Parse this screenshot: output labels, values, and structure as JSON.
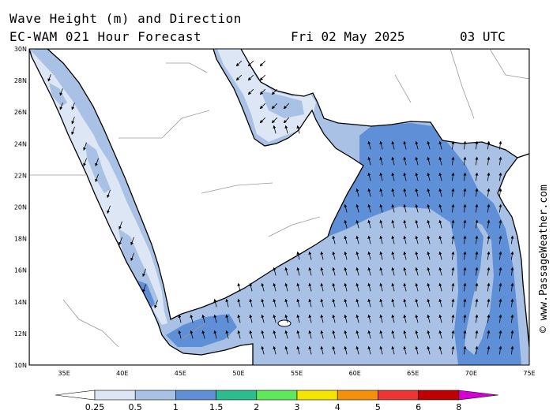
{
  "header": {
    "title_line1": "Wave Height (m) and Direction",
    "title_line2": "EC-WAM 021 Hour Forecast",
    "date": "Fri 02 May 2025",
    "time": "03 UTC"
  },
  "credit": "© www.PassageWeather.com",
  "axes": {
    "lat_labels": [
      "30N",
      "28N",
      "26N",
      "24N",
      "22N",
      "20N",
      "18N",
      "16N",
      "14N",
      "12N",
      "10N"
    ],
    "lon_labels": [
      "35E",
      "40E",
      "45E",
      "50E",
      "55E",
      "60E",
      "65E",
      "70E",
      "75E"
    ],
    "lat_range": [
      10,
      30
    ],
    "lon_range": [
      32,
      75
    ]
  },
  "legend": {
    "labels": [
      "0.25",
      "0.5",
      "1",
      "1.5",
      "2",
      "3",
      "4",
      "5",
      "6",
      "8"
    ],
    "colors": [
      "#ffffff",
      "#dce6f4",
      "#a8c1e4",
      "#5f8fd6",
      "#2bbd8e",
      "#5ee85a",
      "#f5e400",
      "#f5900a",
      "#ee3535",
      "#c00000",
      "#d400d4"
    ]
  },
  "colors": {
    "land": "#ffffff",
    "sea_calm": "#dce6f4",
    "sea_light": "#a8c1e4",
    "sea_moderate": "#5f8fd6",
    "coast": "#000000",
    "border": "#9a9a9a"
  },
  "wave_direction": "north-northwest"
}
